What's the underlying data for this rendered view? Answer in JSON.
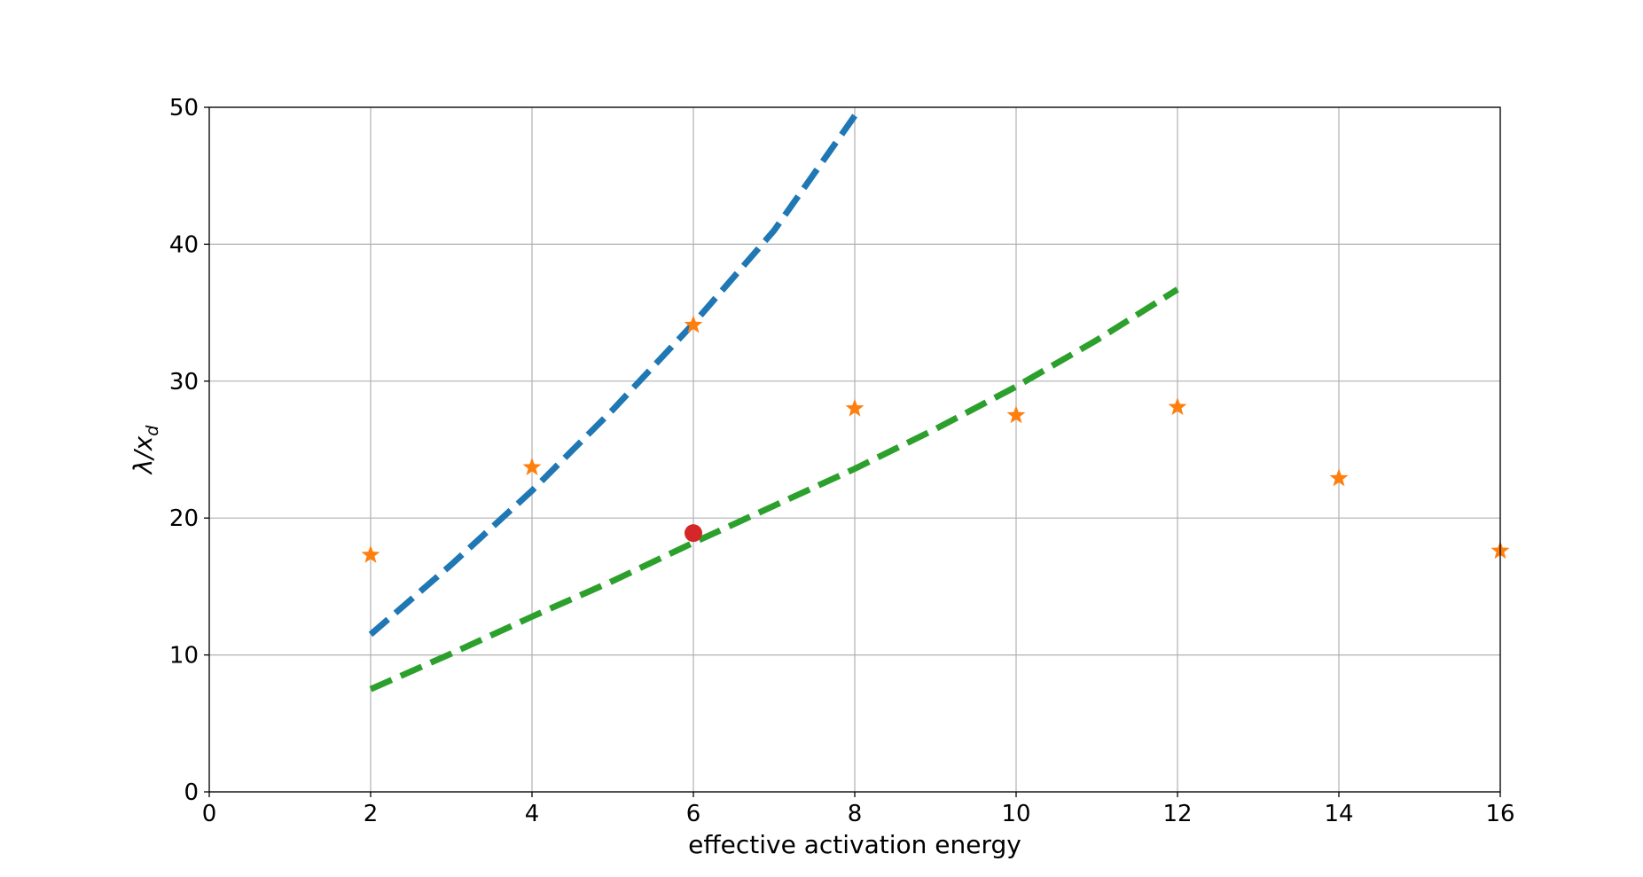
{
  "chart_data": {
    "type": "line",
    "xlabel": "effective activation energy",
    "ylabel_main": "λ/x",
    "ylabel_sub": "d",
    "xlim": [
      0,
      16
    ],
    "ylim": [
      0,
      50
    ],
    "xticks": [
      "0",
      "2",
      "4",
      "6",
      "8",
      "10",
      "12",
      "14",
      "16"
    ],
    "yticks": [
      "0",
      "10",
      "20",
      "30",
      "40",
      "50"
    ],
    "grid": true,
    "series": [
      {
        "kind": "dashed-line",
        "color": "#1f77b4",
        "x": [
          2,
          3,
          4,
          5,
          6,
          7,
          8.05
        ],
        "y": [
          11.5,
          16.6,
          22.0,
          27.9,
          34.2,
          41.0,
          49.8
        ]
      },
      {
        "kind": "dashed-line",
        "color": "#2ca02c",
        "x": [
          2,
          3,
          4,
          5,
          6,
          7,
          8,
          9,
          10,
          11,
          12
        ],
        "y": [
          7.5,
          10.1,
          12.8,
          15.4,
          18.2,
          20.9,
          23.6,
          26.5,
          29.6,
          33.0,
          36.7
        ]
      },
      {
        "kind": "star-markers",
        "color": "#ff7f0e",
        "x": [
          2,
          4,
          6,
          8,
          10,
          12,
          14,
          16
        ],
        "y": [
          17.3,
          23.7,
          34.1,
          28.0,
          27.5,
          28.1,
          22.9,
          17.6
        ]
      },
      {
        "kind": "circle-marker",
        "color": "#d62728",
        "x": [
          6
        ],
        "y": [
          18.9
        ]
      }
    ]
  }
}
